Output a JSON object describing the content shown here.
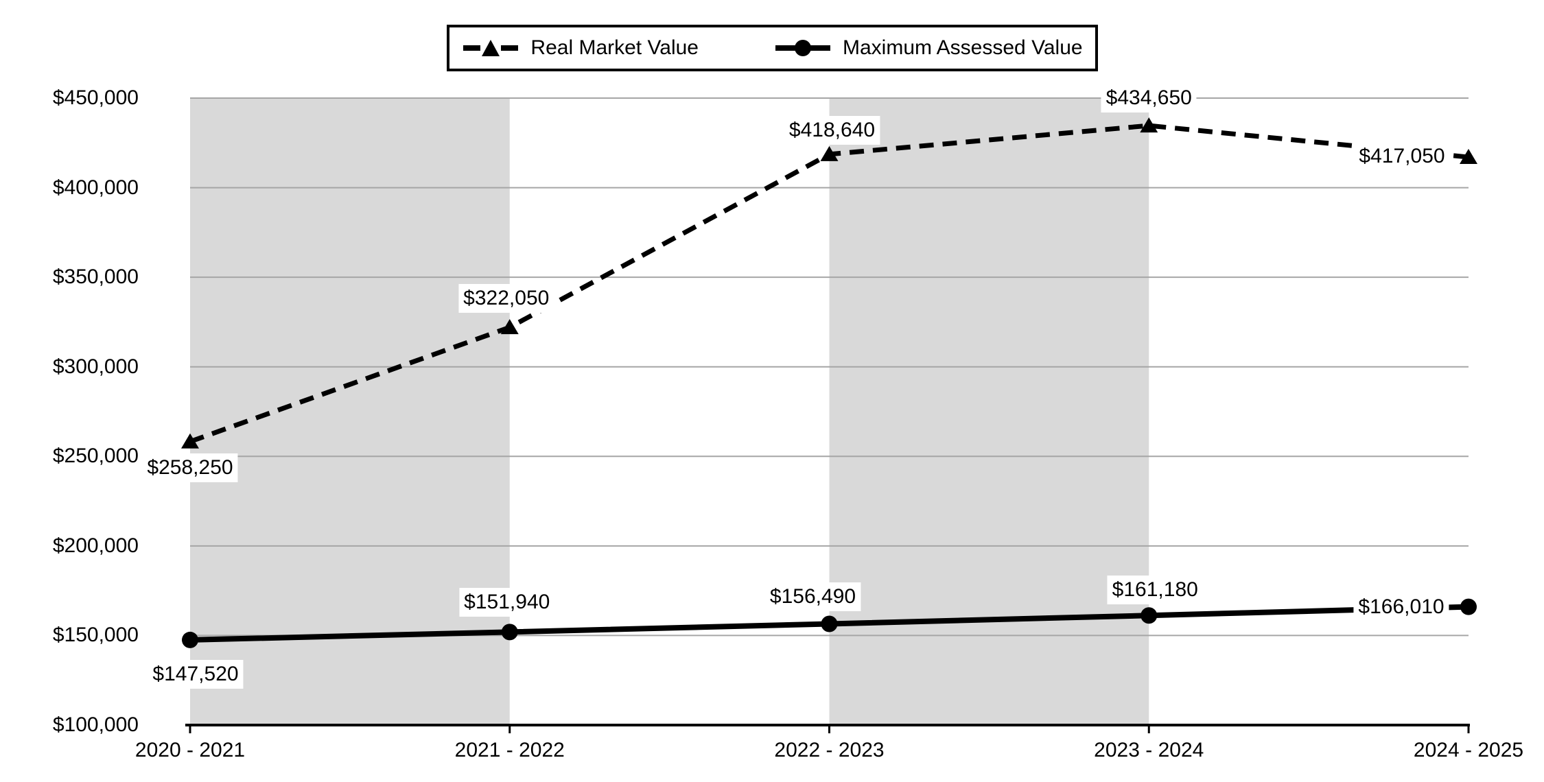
{
  "legend": {
    "items": [
      {
        "label": "Real Market Value",
        "line": "dashed",
        "marker": "triangle"
      },
      {
        "label": "Maximum Assessed Value",
        "line": "solid",
        "marker": "circle"
      }
    ]
  },
  "chart_data": {
    "type": "line",
    "title": "",
    "xlabel": "",
    "ylabel": "",
    "categories": [
      "2020 - 2021",
      "2021 - 2022",
      "2022 - 2023",
      "2023 - 2024",
      "2024 - 2025"
    ],
    "series": [
      {
        "name": "Real Market Value",
        "line": "dashed",
        "marker": "triangle",
        "values": [
          258250,
          322050,
          418640,
          434650,
          417050
        ],
        "labels": [
          "$258,250",
          "$322,050",
          "$418,640",
          "$434,650",
          "$417,050"
        ],
        "label_offsets": [
          [
            0,
            38
          ],
          [
            -5,
            -42
          ],
          [
            4,
            -35
          ],
          [
            0,
            -40
          ],
          [
            -97,
            -1
          ]
        ]
      },
      {
        "name": "Maximum Assessed Value",
        "line": "solid",
        "marker": "circle",
        "values": [
          147520,
          151940,
          156490,
          161180,
          166010
        ],
        "labels": [
          "$147,520",
          "$151,940",
          "$156,490",
          "$161,180",
          "$166,010"
        ],
        "label_offsets": [
          [
            8,
            50
          ],
          [
            -4,
            -43
          ],
          [
            -24,
            -39
          ],
          [
            9,
            -37
          ],
          [
            -98,
            0
          ]
        ]
      }
    ],
    "y_axis": {
      "min": 100000,
      "max": 450000,
      "step": 50000,
      "tick_labels": [
        "$100,000",
        "$150,000",
        "$200,000",
        "$250,000",
        "$300,000",
        "$350,000",
        "$400,000",
        "$450,000"
      ]
    },
    "shaded_bands": [
      [
        0,
        1
      ],
      [
        2,
        3
      ]
    ],
    "grid": "horizontal",
    "legend_position": "top",
    "colors": {
      "series": "#000000",
      "gridline": "#a6a6a6",
      "band": "#d9d9d9",
      "axis": "#000000",
      "background": "#ffffff",
      "label_bg": "#ffffff"
    }
  }
}
